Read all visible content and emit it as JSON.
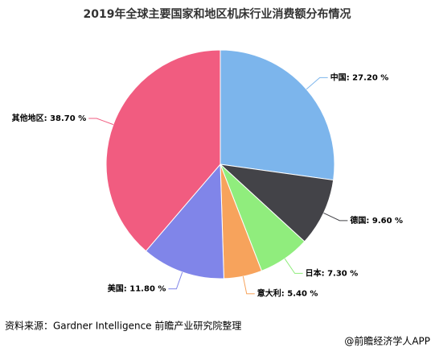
{
  "chart_data": {
    "type": "pie",
    "title": "2019年全球主要国家和地区机床行业消费额分布情况",
    "categories": [
      "中国",
      "德国",
      "日本",
      "意大利",
      "美国",
      "其他地区"
    ],
    "values": [
      27.2,
      9.6,
      7.3,
      5.4,
      11.8,
      38.7
    ],
    "value_labels": [
      "27.20 %",
      "9.60 %",
      "7.30 %",
      "5.40 %",
      "11.80 %",
      "38.70 %"
    ],
    "colors": [
      "#7cb5ec",
      "#434348",
      "#90ed7d",
      "#f7a35c",
      "#8085e9",
      "#f15c80"
    ],
    "source": "资料来源：Gardner Intelligence 前瞻产业研究院整理",
    "credit": "@前瞻经济学人APP"
  }
}
